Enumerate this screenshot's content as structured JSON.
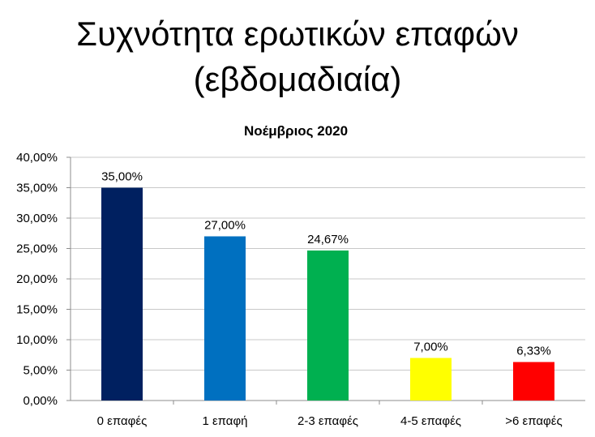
{
  "slide": {
    "title_line1": "Συχνότητα ερωτικών επαφών",
    "title_line2": "(εβδομαδιαία)"
  },
  "chart_data": {
    "type": "bar",
    "title": "Νοέμβριος 2020",
    "categories": [
      "0 επαφές",
      "1 επαφή",
      "2-3 επαφές",
      "4-5 επαφές",
      ">6 επαφές"
    ],
    "values": [
      35.0,
      27.0,
      24.67,
      7.0,
      6.33
    ],
    "data_labels": [
      "35,00%",
      "27,00%",
      "24,67%",
      "7,00%",
      "6,33%"
    ],
    "colors": [
      "#002060",
      "#0070C0",
      "#00B050",
      "#FFFF00",
      "#FF0000"
    ],
    "ylim": [
      0,
      40
    ],
    "yticks": [
      "0,00%",
      "5,00%",
      "10,00%",
      "15,00%",
      "20,00%",
      "25,00%",
      "30,00%",
      "35,00%",
      "40,00%"
    ],
    "grid": true,
    "legend": "none"
  }
}
